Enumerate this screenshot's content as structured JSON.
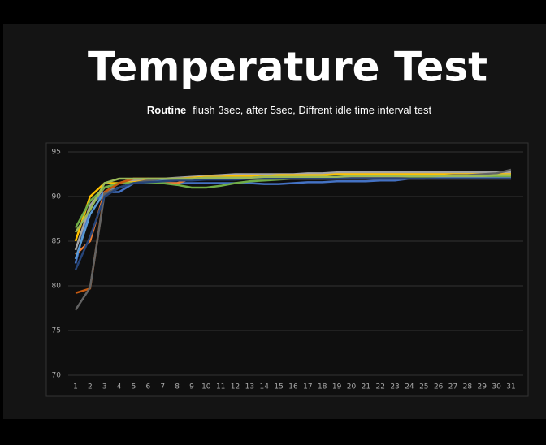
{
  "chart_data": {
    "type": "line",
    "title": "Temperature Test",
    "subtitle_bold": "Routine",
    "subtitle": "flush 3sec, after 5sec, Diffrent idle time interval test",
    "categories": [
      1,
      2,
      3,
      4,
      5,
      6,
      7,
      8,
      9,
      10,
      11,
      12,
      13,
      14,
      15,
      16,
      17,
      18,
      19,
      20,
      21,
      22,
      23,
      24,
      25,
      26,
      27,
      28,
      29,
      30,
      31
    ],
    "ylim": [
      70,
      95
    ],
    "yticks": [
      70,
      75,
      80,
      85,
      90,
      95
    ],
    "grid": true,
    "series": [
      {
        "color": "#4472c4",
        "values": [
          82.5,
          89,
          90.5,
          90.5,
          91.5,
          91.5,
          91.5,
          91.5,
          91.5,
          91.5,
          91.5,
          91.5,
          91.5,
          91.4,
          91.4,
          91.5,
          91.6,
          91.6,
          91.7,
          91.7,
          91.7,
          91.8,
          91.8,
          92,
          92,
          92.2,
          92.3,
          92.3,
          92.3,
          92.3,
          92.3
        ]
      },
      {
        "color": "#ed7d31",
        "values": [
          83.5,
          85,
          90.5,
          91.5,
          92,
          92,
          91.5,
          91.5,
          92,
          92.2,
          92.3,
          92.2,
          92.2,
          92.2,
          92.2,
          92.2,
          92.2,
          92.2,
          92.2,
          92.2,
          92.2,
          92.2,
          92.2,
          92.1,
          92.1,
          92.1,
          92.1,
          92.1,
          92.1,
          92.1,
          92.1
        ]
      },
      {
        "color": "#a5a5a5",
        "values": [
          84,
          89,
          91,
          91.5,
          91.8,
          92,
          92,
          92.1,
          92.2,
          92.3,
          92.4,
          92.5,
          92.5,
          92.5,
          92.5,
          92.5,
          92.6,
          92.6,
          92.7,
          92.7,
          92.7,
          92.7,
          92.7,
          92.7,
          92.7,
          92.7,
          92.7,
          92.7,
          92.7,
          92.7,
          92.7
        ]
      },
      {
        "color": "#ffc000",
        "values": [
          85,
          90,
          91.5,
          91.5,
          91.6,
          91.8,
          91.9,
          92,
          92.1,
          92.2,
          92.2,
          92.3,
          92.3,
          92.3,
          92.4,
          92.4,
          92.4,
          92.4,
          92.5,
          92.5,
          92.5,
          92.5,
          92.5,
          92.5,
          92.5,
          92.5,
          92.5,
          92.5,
          92.5,
          92.5,
          92.5
        ]
      },
      {
        "color": "#5b9bd5",
        "values": [
          83,
          88,
          90.5,
          91,
          91.5,
          91.7,
          91.8,
          91.8,
          91.9,
          92,
          92,
          92,
          92,
          92,
          92,
          92,
          92,
          92,
          92,
          92,
          92,
          92,
          92.1,
          92.1,
          92.1,
          92.2,
          92.2,
          92.2,
          92.2,
          92.2,
          92.2
        ]
      },
      {
        "color": "#70ad47",
        "values": [
          86.5,
          89.5,
          91,
          91.5,
          91.5,
          91.5,
          91.5,
          91.3,
          91,
          91,
          91.2,
          91.5,
          91.7,
          91.8,
          91.9,
          92,
          92,
          92,
          92.1,
          92.1,
          92.1,
          92.2,
          92.2,
          92.2,
          92.2,
          92.3,
          92.3,
          92.3,
          92.3,
          92.3,
          92.3
        ]
      },
      {
        "color": "#c55a11",
        "values": [
          79.2,
          79.7,
          90.5,
          91.5,
          92,
          92,
          92,
          92,
          92,
          92,
          92,
          92,
          92,
          92,
          92,
          92,
          92,
          92,
          92,
          92,
          92,
          92,
          92,
          92,
          92,
          92,
          92,
          92,
          92,
          92,
          92
        ]
      },
      {
        "color": "#636363",
        "values": [
          77.3,
          79.8,
          90.3,
          91,
          91.5,
          91.8,
          92,
          92,
          92,
          92.1,
          92.1,
          92.1,
          92.1,
          92.2,
          92.2,
          92.2,
          92.2,
          92.2,
          92.2,
          92.2,
          92.2,
          92.2,
          92.2,
          92.3,
          92.3,
          92.3,
          92.4,
          92.4,
          92.5,
          92.6,
          93
        ]
      },
      {
        "color": "#264478",
        "values": [
          81.8,
          85.5,
          90,
          91,
          91.5,
          91.6,
          91.7,
          91.8,
          91.8,
          91.9,
          91.9,
          91.9,
          92,
          92,
          92,
          92,
          92,
          92,
          92,
          92,
          92,
          92,
          92,
          92,
          92,
          92,
          92,
          92,
          92,
          92,
          92
        ]
      },
      {
        "color": "#9bbb59",
        "values": [
          86,
          88.5,
          91.5,
          92,
          92,
          92,
          92,
          92,
          92,
          92.1,
          92.1,
          92.1,
          92.1,
          92.2,
          92.2,
          92.2,
          92.2,
          92.2,
          92.2,
          92.3,
          92.3,
          92.3,
          92.3,
          92.3,
          92.3,
          92.3,
          92.3,
          92.3,
          92.3,
          92.4,
          92.4
        ]
      }
    ]
  }
}
